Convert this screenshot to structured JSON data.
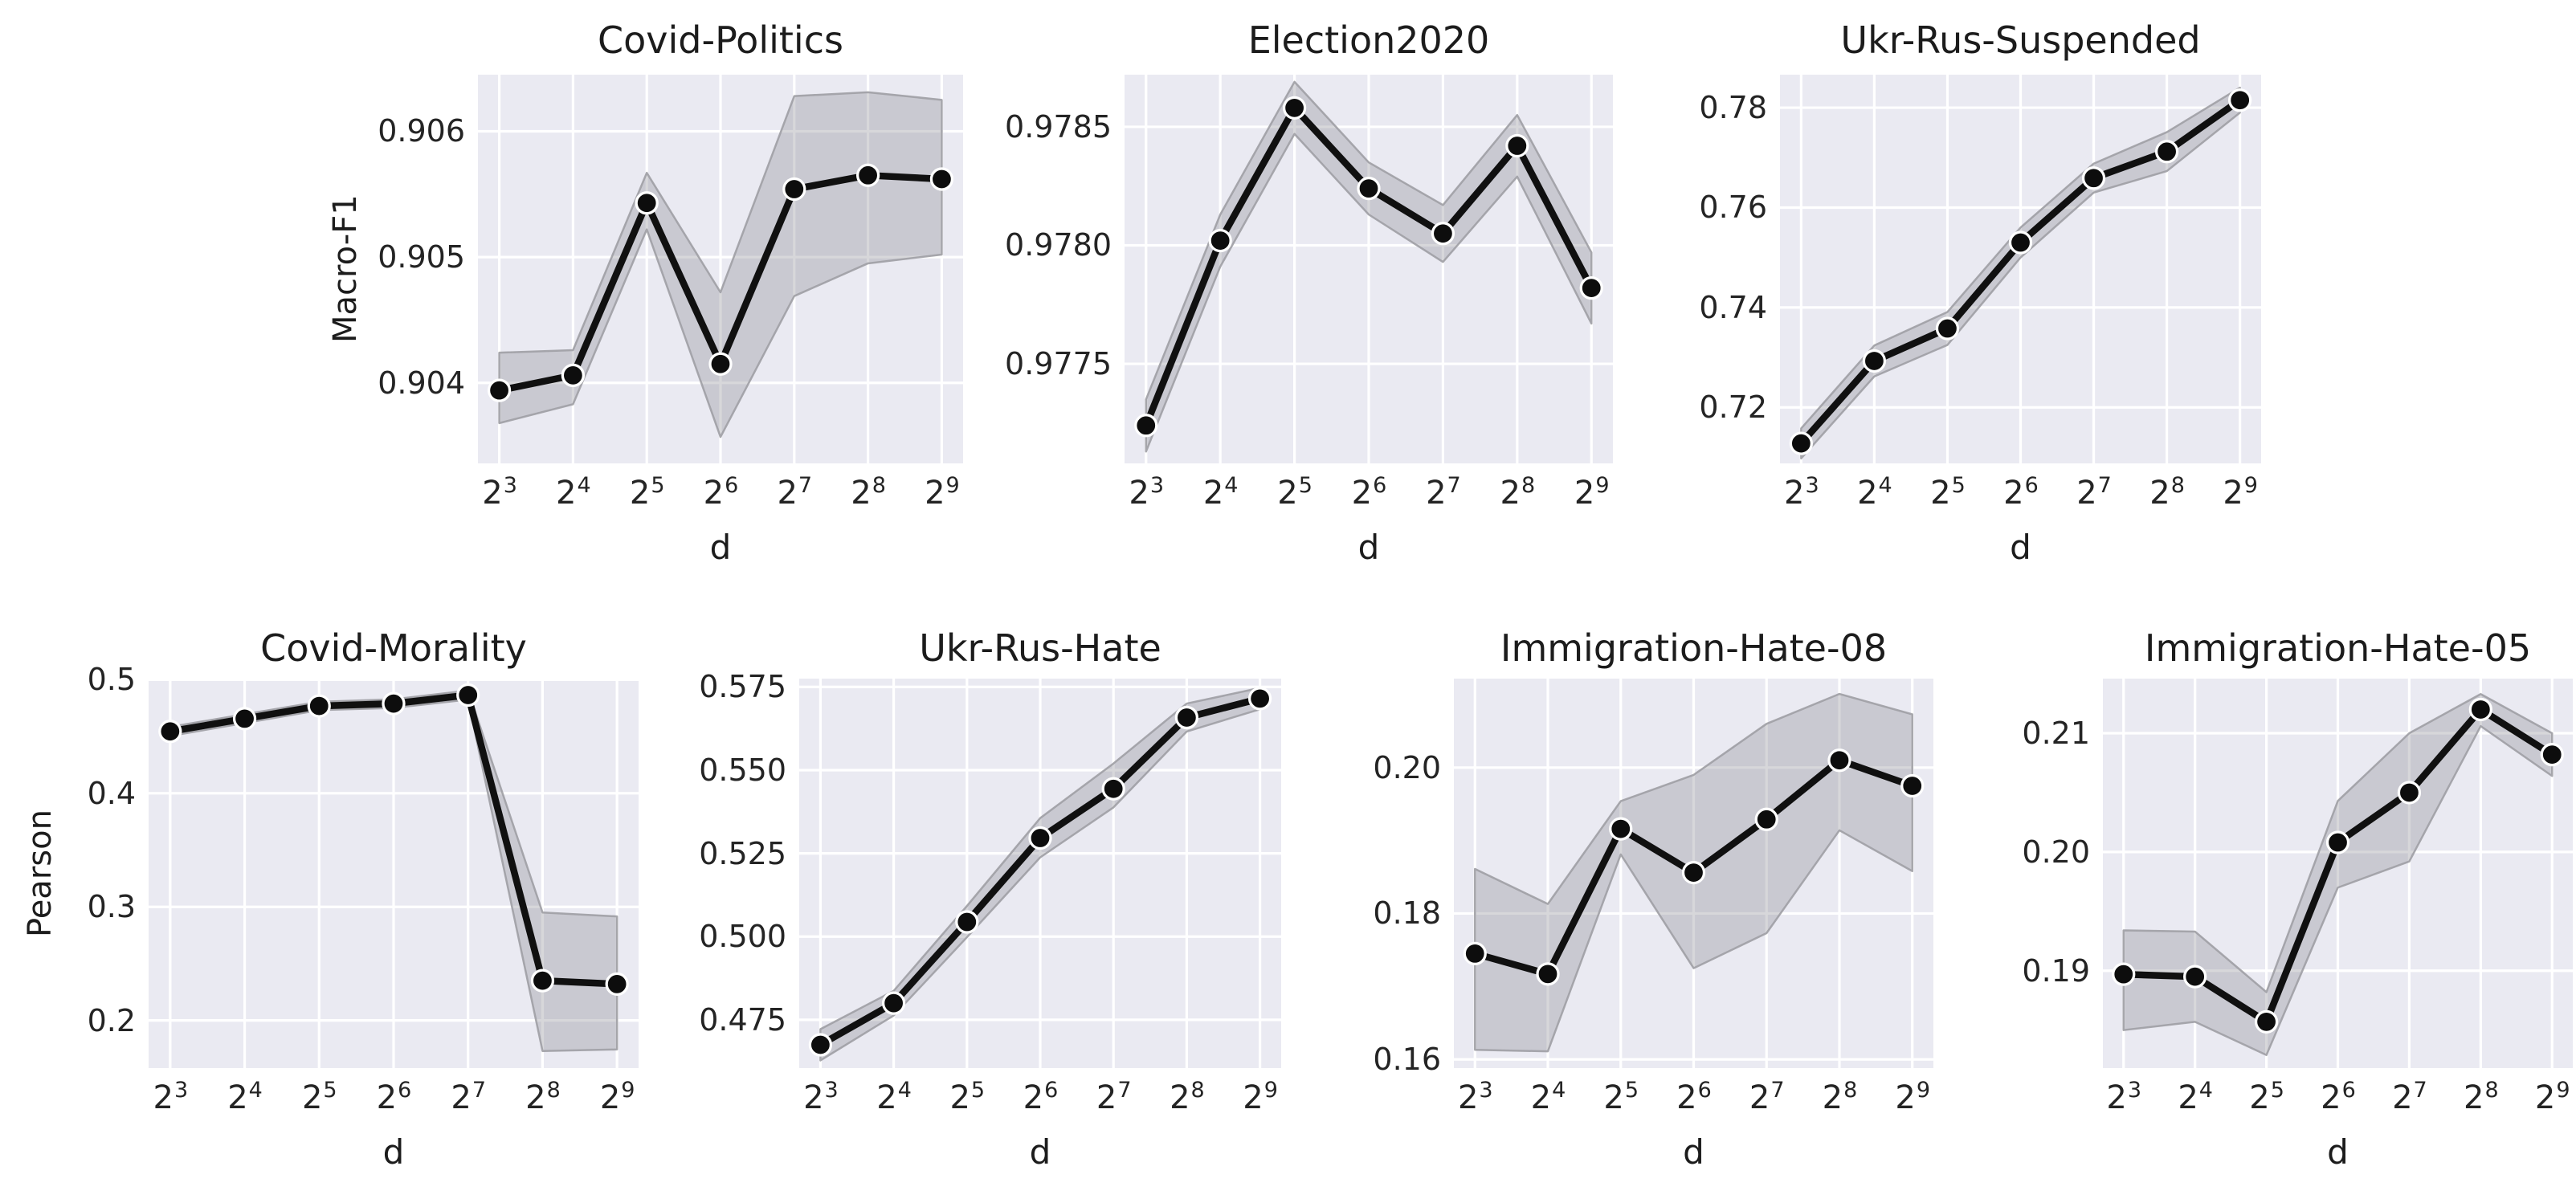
{
  "style": {
    "plot_bg": "#eaeaf2",
    "grid_color": "#ffffff",
    "line_color": "#101010",
    "marker_color": "#0d0d0d",
    "marker_edge_color": "#ffffff",
    "band_fill": "#8a8a92",
    "band_fill_opacity": 0.34,
    "band_edge": "#9e9ea4",
    "text_color": "#1c1c1c"
  },
  "chart_data": [
    {
      "type": "line",
      "title": "Covid-Politics",
      "xlabel": "d",
      "ylabel": "Macro-F1",
      "x_categories": [
        "2^3",
        "2^4",
        "2^5",
        "2^6",
        "2^7",
        "2^8",
        "2^9"
      ],
      "yticks": [
        0.904,
        0.905,
        0.906
      ],
      "ytick_labels": [
        "0.904",
        "0.905",
        "0.906"
      ],
      "ylim": [
        0.90336,
        0.90645
      ],
      "values": [
        0.90394,
        0.90406,
        0.90543,
        0.90415,
        0.90554,
        0.90565,
        0.90562
      ],
      "band_low": [
        0.90368,
        0.90383,
        0.90522,
        0.90357,
        0.90469,
        0.90495,
        0.90502
      ],
      "band_high": [
        0.90424,
        0.90426,
        0.90567,
        0.90472,
        0.90628,
        0.90631,
        0.90625
      ],
      "grid": true,
      "legend": "none"
    },
    {
      "type": "line",
      "title": "Election2020",
      "xlabel": "d",
      "ylabel": "",
      "x_categories": [
        "2^3",
        "2^4",
        "2^5",
        "2^6",
        "2^7",
        "2^8",
        "2^9"
      ],
      "yticks": [
        0.9775,
        0.978,
        0.9785
      ],
      "ytick_labels": [
        "0.9775",
        "0.9780",
        "0.9785"
      ],
      "ylim": [
        0.97708,
        0.97872
      ],
      "values": [
        0.97724,
        0.97802,
        0.97858,
        0.97824,
        0.97805,
        0.97842,
        0.97782
      ],
      "band_low": [
        0.97713,
        0.97791,
        0.97847,
        0.97813,
        0.97793,
        0.97829,
        0.97767
      ],
      "band_high": [
        0.97735,
        0.97813,
        0.97869,
        0.97835,
        0.97817,
        0.97855,
        0.97797
      ],
      "grid": true,
      "legend": "none"
    },
    {
      "type": "line",
      "title": "Ukr-Rus-Suspended",
      "xlabel": "d",
      "ylabel": "",
      "x_categories": [
        "2^3",
        "2^4",
        "2^5",
        "2^6",
        "2^7",
        "2^8",
        "2^9"
      ],
      "yticks": [
        0.72,
        0.74,
        0.76,
        0.78
      ],
      "ytick_labels": [
        "0.72",
        "0.74",
        "0.76",
        "0.78"
      ],
      "ylim": [
        0.7088,
        0.7866
      ],
      "values": [
        0.7128,
        0.7293,
        0.7358,
        0.753,
        0.7659,
        0.7712,
        0.7815
      ],
      "band_low": [
        0.7098,
        0.7262,
        0.7325,
        0.75,
        0.763,
        0.7673,
        0.779
      ],
      "band_high": [
        0.7158,
        0.7324,
        0.7391,
        0.756,
        0.7688,
        0.7751,
        0.784
      ],
      "grid": true,
      "legend": "none"
    },
    {
      "type": "line",
      "title": "Covid-Morality",
      "xlabel": "d",
      "ylabel": "Pearson",
      "x_categories": [
        "2^3",
        "2^4",
        "2^5",
        "2^6",
        "2^7",
        "2^8",
        "2^9"
      ],
      "yticks": [
        0.2,
        0.3,
        0.4,
        0.5
      ],
      "ytick_labels": [
        "0.2",
        "0.3",
        "0.4",
        "0.5"
      ],
      "ylim": [
        0.158,
        0.501
      ],
      "values": [
        0.4545,
        0.4657,
        0.4769,
        0.479,
        0.4865,
        0.235,
        0.232
      ],
      "band_low": [
        0.4505,
        0.4618,
        0.4732,
        0.4752,
        0.4825,
        0.173,
        0.1744
      ],
      "band_high": [
        0.4585,
        0.4696,
        0.4806,
        0.4828,
        0.4905,
        0.295,
        0.2916
      ],
      "grid": true,
      "legend": "none"
    },
    {
      "type": "line",
      "title": "Ukr-Rus-Hate",
      "xlabel": "d",
      "ylabel": "",
      "x_categories": [
        "2^3",
        "2^4",
        "2^5",
        "2^6",
        "2^7",
        "2^8",
        "2^9"
      ],
      "yticks": [
        0.475,
        0.5,
        0.525,
        0.55,
        0.575
      ],
      "ytick_labels": [
        "0.475",
        "0.500",
        "0.525",
        "0.550",
        "0.575"
      ],
      "ylim": [
        0.4605,
        0.5775
      ],
      "values": [
        0.4675,
        0.48,
        0.5044,
        0.5296,
        0.5444,
        0.5658,
        0.5715
      ],
      "band_low": [
        0.4628,
        0.4763,
        0.4998,
        0.5238,
        0.5388,
        0.5616,
        0.5683
      ],
      "band_high": [
        0.4722,
        0.4837,
        0.5092,
        0.5356,
        0.552,
        0.57,
        0.5747
      ],
      "grid": true,
      "legend": "none"
    },
    {
      "type": "line",
      "title": "Immigration-Hate-08",
      "xlabel": "d",
      "ylabel": "",
      "x_categories": [
        "2^3",
        "2^4",
        "2^5",
        "2^6",
        "2^7",
        "2^8",
        "2^9"
      ],
      "yticks": [
        0.16,
        0.18,
        0.2
      ],
      "ytick_labels": [
        "0.16",
        "0.18",
        "0.20"
      ],
      "ylim": [
        0.1588,
        0.2122
      ],
      "values": [
        0.1745,
        0.1717,
        0.1916,
        0.1856,
        0.1929,
        0.201,
        0.1975
      ],
      "band_low": [
        0.1613,
        0.1611,
        0.1881,
        0.1725,
        0.1773,
        0.1914,
        0.1858
      ],
      "band_high": [
        0.1861,
        0.1813,
        0.1954,
        0.199,
        0.206,
        0.2101,
        0.2073
      ],
      "grid": true,
      "legend": "none"
    },
    {
      "type": "line",
      "title": "Immigration-Hate-05",
      "xlabel": "d",
      "ylabel": "",
      "x_categories": [
        "2^3",
        "2^4",
        "2^5",
        "2^6",
        "2^7",
        "2^8",
        "2^9"
      ],
      "yticks": [
        0.19,
        0.2,
        0.21
      ],
      "ytick_labels": [
        "0.19",
        "0.20",
        "0.21"
      ],
      "ylim": [
        0.1818,
        0.2146
      ],
      "values": [
        0.1897,
        0.1895,
        0.1857,
        0.2008,
        0.205,
        0.212,
        0.2082
      ],
      "band_low": [
        0.185,
        0.1857,
        0.1829,
        0.197,
        0.1992,
        0.2106,
        0.2064
      ],
      "band_high": [
        0.1934,
        0.1933,
        0.1882,
        0.2043,
        0.21,
        0.2133,
        0.21
      ],
      "grid": true,
      "legend": "none"
    }
  ]
}
